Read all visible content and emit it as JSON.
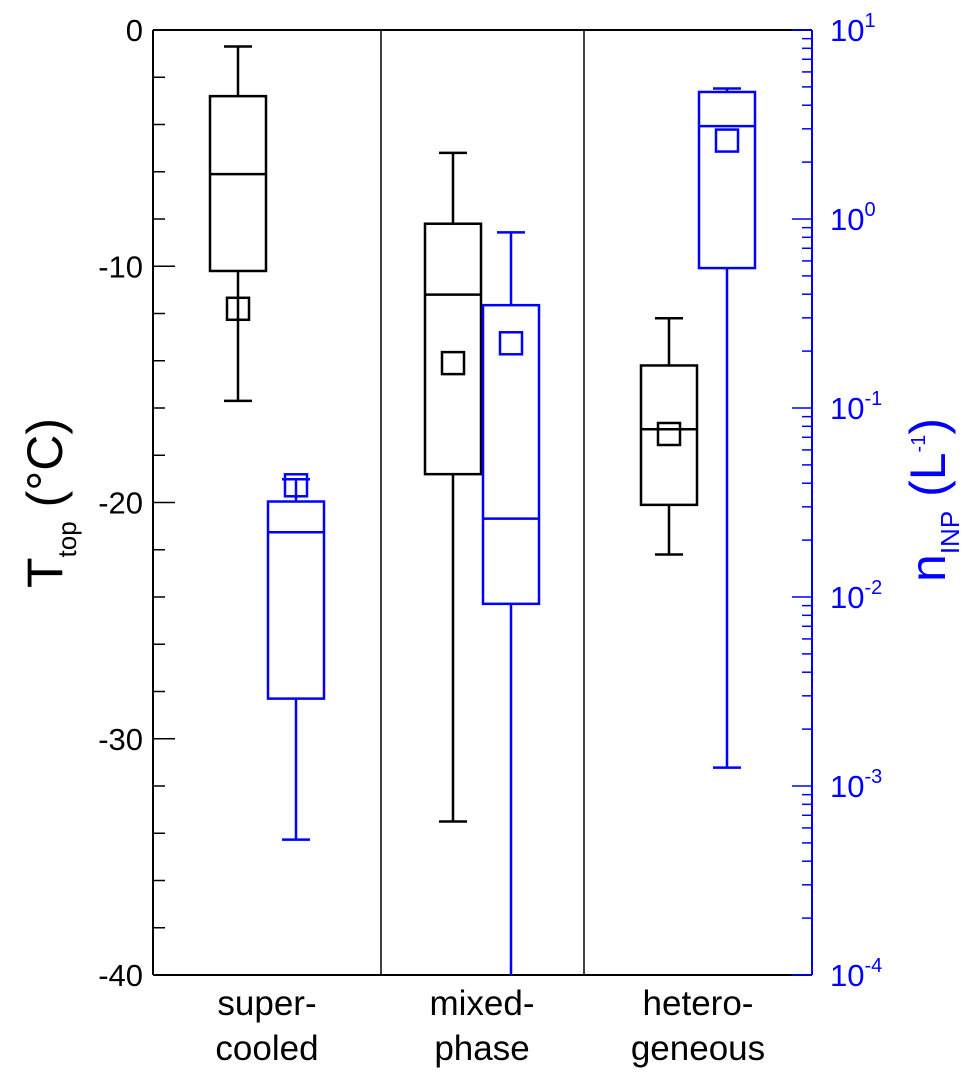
{
  "chart_data": {
    "type": "box",
    "categories": [
      {
        "line1": "super-",
        "line2": "cooled"
      },
      {
        "line1": "mixed-",
        "line2": "phase"
      },
      {
        "line1": "hetero-",
        "line2": "geneous"
      }
    ],
    "left_axis": {
      "title_main": "T",
      "title_sub": "top",
      "title_rest": " (°C)",
      "color": "#000000",
      "ylim": [
        -40,
        0
      ],
      "ticks": [
        "0",
        "-10",
        "-20",
        "-30",
        "-40"
      ],
      "tick_values": [
        0,
        -10,
        -20,
        -30,
        -40
      ]
    },
    "right_axis": {
      "title_main": "n",
      "title_sub": "INP",
      "title_pre": " (L",
      "title_sup": "-1",
      "title_post": ")",
      "color": "#0000ff",
      "scale": "log",
      "ylim": [
        0.0001,
        10
      ],
      "ticks": [
        {
          "base": "10",
          "exp": "1",
          "value": 10
        },
        {
          "base": "10",
          "exp": "0",
          "value": 1
        },
        {
          "base": "10",
          "exp": "-1",
          "value": 0.1
        },
        {
          "base": "10",
          "exp": "-2",
          "value": 0.01
        },
        {
          "base": "10",
          "exp": "-3",
          "value": 0.001
        },
        {
          "base": "10",
          "exp": "-4",
          "value": 0.0001
        }
      ]
    },
    "series": [
      {
        "axis": "left",
        "color": "#000000",
        "boxes": [
          {
            "category": 0,
            "whisker_high": -0.7,
            "q3": -2.8,
            "median": -6.1,
            "q1": -10.2,
            "whisker_low": -15.7,
            "mean": -11.8
          },
          {
            "category": 1,
            "whisker_high": -5.2,
            "q3": -8.2,
            "median": -11.2,
            "q1": -18.8,
            "whisker_low": -33.5,
            "mean": -14.1
          },
          {
            "category": 2,
            "whisker_high": -12.2,
            "q3": -14.2,
            "median": -16.9,
            "q1": -20.1,
            "whisker_low": -22.2,
            "mean": -17.1
          }
        ]
      },
      {
        "axis": "right",
        "color": "#0000ff",
        "boxes": [
          {
            "category": 0,
            "whisker_high": 0.042,
            "q3": 0.032,
            "median": 0.022,
            "q1": 0.0029,
            "whisker_low": 0.00052,
            "mean": 0.039
          },
          {
            "category": 1,
            "whisker_high": 0.85,
            "q3": 0.35,
            "median": 0.026,
            "q1": 0.0092,
            "whisker_low": 0.0001,
            "mean": 0.22
          },
          {
            "category": 2,
            "whisker_high": 4.9,
            "q3": 4.7,
            "median": 3.1,
            "q1": 0.55,
            "whisker_low": 0.00125,
            "mean": 2.6
          }
        ]
      }
    ]
  }
}
